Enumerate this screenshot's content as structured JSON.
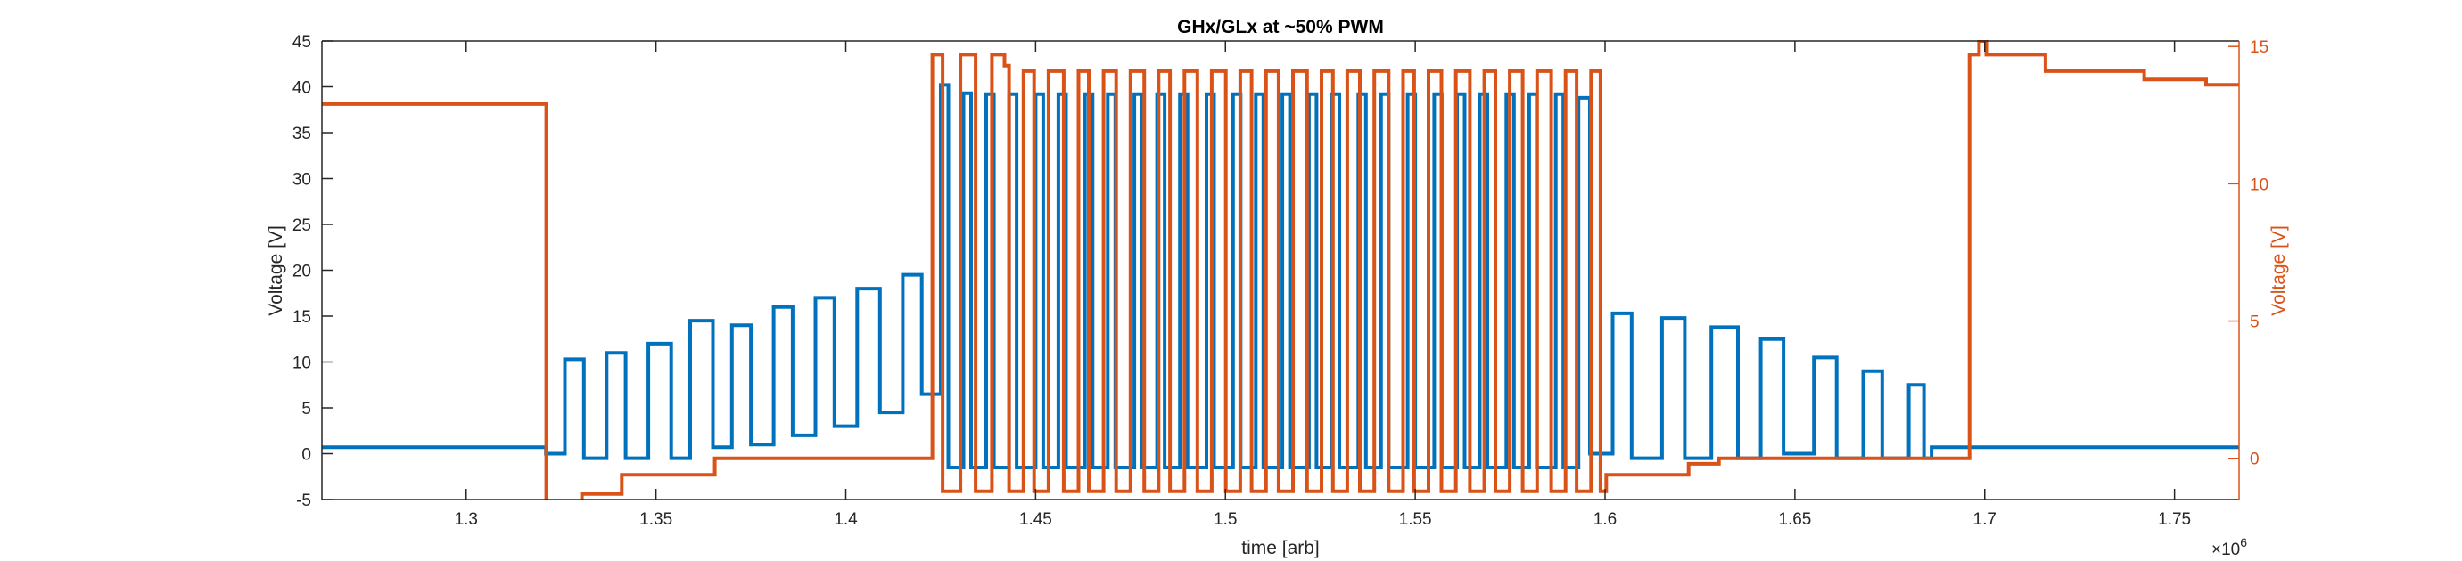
{
  "chart_data": {
    "type": "line",
    "title": "GHx/GLx at ~50% PWM",
    "xlabel": "time [arb]",
    "ylabel_left": "Voltage [V]",
    "ylabel_right": "Voltage [V]",
    "x_exponent_label": "×10",
    "x_exponent_power": "6",
    "x_tick_labels": [
      "1.3",
      "1.35",
      "1.4",
      "1.45",
      "1.5",
      "1.55",
      "1.6",
      "1.65",
      "1.7",
      "1.75"
    ],
    "y_left_tick_labels": [
      "-5",
      "0",
      "5",
      "10",
      "15",
      "20",
      "25",
      "30",
      "35",
      "40",
      "45"
    ],
    "y_right_tick_labels": [
      "0",
      "5",
      "10",
      "15"
    ],
    "xlim": [
      1.262,
      1.767
    ],
    "x_ticks": [
      1.3,
      1.35,
      1.4,
      1.45,
      1.5,
      1.55,
      1.6,
      1.65,
      1.7,
      1.75
    ],
    "ylim_left": [
      -5,
      45
    ],
    "y_left_ticks": [
      -5,
      0,
      5,
      10,
      15,
      20,
      25,
      30,
      35,
      40,
      45
    ],
    "ylim_right": [
      -1.5,
      15.2
    ],
    "y_right_ticks": [
      0,
      5,
      10,
      15
    ],
    "grid": false,
    "colors": {
      "left_axis": "#000000",
      "right_axis": "#d95319",
      "series_left": "#0072bd",
      "series_right": "#d95319"
    },
    "series": [
      {
        "axis": "left",
        "steps": [
          [
            1.262,
            0.7
          ],
          [
            1.321,
            0.0
          ],
          [
            1.326,
            10.3
          ],
          [
            1.331,
            -0.5
          ],
          [
            1.337,
            11.0
          ],
          [
            1.342,
            -0.5
          ],
          [
            1.348,
            12.0
          ],
          [
            1.354,
            -0.5
          ],
          [
            1.359,
            14.5
          ],
          [
            1.365,
            0.7
          ],
          [
            1.37,
            14.0
          ],
          [
            1.375,
            1.0
          ],
          [
            1.381,
            16.0
          ],
          [
            1.386,
            2.0
          ],
          [
            1.392,
            17.0
          ],
          [
            1.397,
            3.0
          ],
          [
            1.403,
            18.0
          ],
          [
            1.409,
            4.5
          ],
          [
            1.415,
            19.5
          ],
          [
            1.42,
            6.5
          ],
          [
            1.425,
            40.2
          ],
          [
            1.427,
            -1.5
          ],
          [
            1.431,
            39.3
          ],
          [
            1.433,
            -1.5
          ],
          [
            1.437,
            39.2
          ],
          [
            1.439,
            -1.5
          ],
          [
            1.443,
            39.2
          ],
          [
            1.445,
            -1.5
          ],
          [
            1.45,
            39.2
          ],
          [
            1.452,
            -1.5
          ],
          [
            1.456,
            39.2
          ],
          [
            1.458,
            -1.5
          ],
          [
            1.463,
            39.2
          ],
          [
            1.465,
            -1.5
          ],
          [
            1.469,
            39.2
          ],
          [
            1.471,
            -1.5
          ],
          [
            1.476,
            39.2
          ],
          [
            1.478,
            -1.5
          ],
          [
            1.482,
            39.2
          ],
          [
            1.484,
            -1.5
          ],
          [
            1.488,
            39.2
          ],
          [
            1.49,
            -1.5
          ],
          [
            1.495,
            39.2
          ],
          [
            1.497,
            -1.5
          ],
          [
            1.502,
            39.2
          ],
          [
            1.504,
            -1.5
          ],
          [
            1.508,
            39.2
          ],
          [
            1.51,
            -1.5
          ],
          [
            1.515,
            39.2
          ],
          [
            1.517,
            -1.5
          ],
          [
            1.522,
            39.2
          ],
          [
            1.524,
            -1.5
          ],
          [
            1.528,
            39.2
          ],
          [
            1.53,
            -1.5
          ],
          [
            1.535,
            39.2
          ],
          [
            1.537,
            -1.5
          ],
          [
            1.541,
            39.2
          ],
          [
            1.543,
            -1.5
          ],
          [
            1.548,
            39.2
          ],
          [
            1.55,
            -1.5
          ],
          [
            1.555,
            39.2
          ],
          [
            1.557,
            -1.5
          ],
          [
            1.561,
            39.2
          ],
          [
            1.563,
            -1.5
          ],
          [
            1.567,
            39.2
          ],
          [
            1.569,
            -1.5
          ],
          [
            1.574,
            39.2
          ],
          [
            1.576,
            -1.5
          ],
          [
            1.58,
            39.2
          ],
          [
            1.582,
            -1.5
          ],
          [
            1.587,
            39.2
          ],
          [
            1.589,
            -1.5
          ],
          [
            1.593,
            38.8
          ],
          [
            1.596,
            0.0
          ],
          [
            1.602,
            15.3
          ],
          [
            1.607,
            -0.5
          ],
          [
            1.615,
            14.8
          ],
          [
            1.621,
            -0.5
          ],
          [
            1.628,
            13.8
          ],
          [
            1.635,
            -0.5
          ],
          [
            1.641,
            12.5
          ],
          [
            1.647,
            0.0
          ],
          [
            1.655,
            10.5
          ],
          [
            1.661,
            -0.5
          ],
          [
            1.668,
            9.0
          ],
          [
            1.673,
            -0.5
          ],
          [
            1.68,
            7.5
          ],
          [
            1.684,
            -0.5
          ],
          [
            1.686,
            0.7
          ],
          [
            1.767,
            0.7
          ]
        ]
      },
      {
        "axis": "right",
        "steps": [
          [
            1.262,
            12.9
          ],
          [
            1.3211,
            -1.6
          ],
          [
            1.3305,
            -1.3
          ],
          [
            1.341,
            -0.6
          ],
          [
            1.3655,
            0.0
          ],
          [
            1.4228,
            14.7
          ],
          [
            1.4255,
            -1.2
          ],
          [
            1.4302,
            14.7
          ],
          [
            1.4342,
            -1.2
          ],
          [
            1.4385,
            14.7
          ],
          [
            1.4418,
            14.3
          ],
          [
            1.443,
            -1.2
          ],
          [
            1.4468,
            14.1
          ],
          [
            1.4496,
            -1.2
          ],
          [
            1.4534,
            14.1
          ],
          [
            1.4574,
            -1.2
          ],
          [
            1.4613,
            14.1
          ],
          [
            1.464,
            -1.2
          ],
          [
            1.4679,
            14.1
          ],
          [
            1.4712,
            -1.2
          ],
          [
            1.475,
            14.1
          ],
          [
            1.4786,
            -1.2
          ],
          [
            1.4824,
            14.1
          ],
          [
            1.4854,
            -1.2
          ],
          [
            1.4892,
            14.1
          ],
          [
            1.4926,
            -1.2
          ],
          [
            1.4964,
            14.1
          ],
          [
            1.5001,
            -1.2
          ],
          [
            1.5039,
            14.1
          ],
          [
            1.5069,
            -1.2
          ],
          [
            1.5107,
            14.1
          ],
          [
            1.514,
            -1.2
          ],
          [
            1.5178,
            14.1
          ],
          [
            1.5215,
            -1.2
          ],
          [
            1.5253,
            14.1
          ],
          [
            1.5283,
            -1.2
          ],
          [
            1.5321,
            14.1
          ],
          [
            1.5354,
            -1.2
          ],
          [
            1.5392,
            14.1
          ],
          [
            1.543,
            -1.2
          ],
          [
            1.5468,
            14.1
          ],
          [
            1.5497,
            -1.2
          ],
          [
            1.5535,
            14.1
          ],
          [
            1.5569,
            -1.2
          ],
          [
            1.5607,
            14.1
          ],
          [
            1.5644,
            -1.2
          ],
          [
            1.5682,
            14.1
          ],
          [
            1.5711,
            -1.2
          ],
          [
            1.5749,
            14.1
          ],
          [
            1.5783,
            -1.2
          ],
          [
            1.5821,
            14.1
          ],
          [
            1.5858,
            -1.2
          ],
          [
            1.5896,
            14.1
          ],
          [
            1.5925,
            -1.2
          ],
          [
            1.5963,
            14.1
          ],
          [
            1.5988,
            -1.2
          ],
          [
            1.6003,
            -0.6
          ],
          [
            1.622,
            -0.2
          ],
          [
            1.63,
            0.0
          ],
          [
            1.696,
            14.7
          ],
          [
            1.6985,
            15.2
          ],
          [
            1.7004,
            14.7
          ],
          [
            1.716,
            14.1
          ],
          [
            1.742,
            13.8
          ],
          [
            1.7583,
            13.6
          ],
          [
            1.775,
            12.9
          ],
          [
            1.792,
            12.9
          ]
        ]
      }
    ]
  }
}
